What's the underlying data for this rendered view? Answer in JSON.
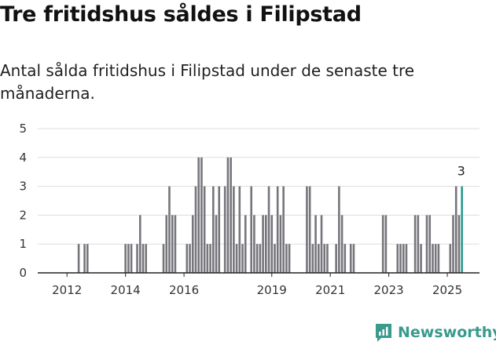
{
  "header": {
    "title": "Tre fritidshus såldes i Filipstad",
    "subtitle": "Antal sålda fritidshus i Filipstad under de senaste tre månaderna."
  },
  "brand": {
    "name": "Newsworthy",
    "icon": "newsworthy-logo-icon",
    "color": "#3a9a8c"
  },
  "colors": {
    "bar": "#76757b",
    "highlight": "#2b9a8a",
    "grid": "#dddddd",
    "axis": "#222222"
  },
  "chart_data": {
    "type": "bar",
    "title": "",
    "xlabel": "",
    "ylabel": "",
    "ylim": [
      0,
      5
    ],
    "y_ticks": [
      0,
      1,
      2,
      3,
      4,
      5
    ],
    "x_range": [
      2011.1,
      2026.2
    ],
    "x_ticks": [
      "2012",
      "2014",
      "2016",
      "2019",
      "2021",
      "2023",
      "2025"
    ],
    "x_tick_values": [
      2012.1,
      2014.1,
      2016.1,
      2019.1,
      2021.1,
      2023.1,
      2025.1
    ],
    "bar_width_years": 0.07,
    "grid": true,
    "series": [
      {
        "x": [
          2012.5,
          2012.6,
          2012.7,
          2012.8,
          2014.1,
          2014.2,
          2014.3,
          2014.5,
          2014.6,
          2014.7,
          2014.8,
          2015.4,
          2015.5,
          2015.6,
          2015.7,
          2015.8,
          2016.2,
          2016.3,
          2016.4,
          2016.5,
          2016.6,
          2016.7,
          2016.8,
          2016.9,
          2017.0,
          2017.1,
          2017.2,
          2017.3,
          2017.5,
          2017.6,
          2017.7,
          2017.8,
          2017.9,
          2018.0,
          2018.1,
          2018.2,
          2018.4,
          2018.5,
          2018.6,
          2018.7,
          2018.8,
          2018.9,
          2019.0,
          2019.1,
          2019.2,
          2019.3,
          2019.4,
          2019.5,
          2019.6,
          2019.7,
          2020.3,
          2020.4,
          2020.5,
          2020.6,
          2020.7,
          2020.8,
          2020.9,
          2021.0,
          2021.3,
          2021.4,
          2021.5,
          2021.6,
          2021.8,
          2021.9,
          2022.9,
          2023.0,
          2023.4,
          2023.5,
          2023.6,
          2023.7,
          2024.0,
          2024.1,
          2024.2,
          2024.4,
          2024.5,
          2024.6,
          2024.7,
          2024.8,
          2025.2,
          2025.3,
          2025.4,
          2025.5
        ],
        "values": [
          1,
          0,
          1,
          1,
          1,
          1,
          1,
          1,
          2,
          1,
          1,
          1,
          2,
          3,
          2,
          2,
          1,
          1,
          2,
          3,
          4,
          4,
          3,
          1,
          1,
          3,
          2,
          3,
          3,
          4,
          4,
          3,
          1,
          3,
          1,
          2,
          3,
          2,
          1,
          1,
          2,
          2,
          3,
          2,
          1,
          3,
          2,
          3,
          1,
          1,
          3,
          3,
          1,
          2,
          1,
          2,
          1,
          1,
          1,
          3,
          2,
          1,
          1,
          1,
          2,
          2,
          1,
          1,
          1,
          1,
          2,
          2,
          1,
          2,
          2,
          1,
          1,
          1,
          1,
          2,
          3,
          2
        ],
        "highlight": {
          "x": 2025.6,
          "value": 3,
          "label": "3"
        }
      }
    ]
  }
}
